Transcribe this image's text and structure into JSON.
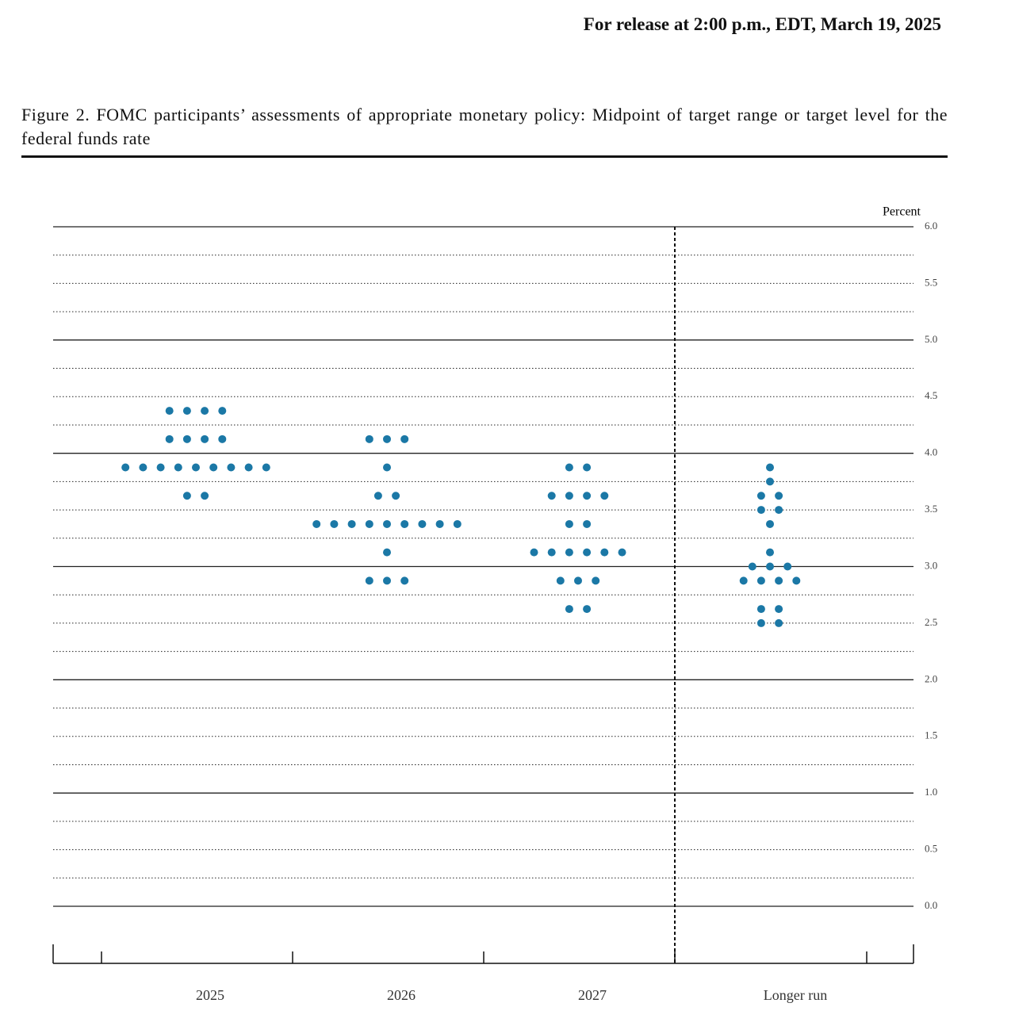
{
  "header": {
    "release": "For release at 2:00 p.m., EDT, March 19, 2025"
  },
  "chart_data": {
    "type": "dotplot",
    "title": "Figure 2.  FOMC participants’ assessments of appropriate monetary policy:  Midpoint of target range or target level for the federal funds rate",
    "y_label": "Percent",
    "categories": [
      "2025",
      "2026",
      "2027",
      "Longer run"
    ],
    "color": "#1b78a6",
    "values": [
      [
        4.375,
        4.375,
        4.375,
        4.375,
        4.125,
        4.125,
        4.125,
        4.125,
        3.875,
        3.875,
        3.875,
        3.875,
        3.875,
        3.875,
        3.875,
        3.875,
        3.875,
        3.625,
        3.625
      ],
      [
        4.125,
        4.125,
        4.125,
        3.875,
        3.625,
        3.625,
        3.375,
        3.375,
        3.375,
        3.375,
        3.375,
        3.375,
        3.375,
        3.375,
        3.375,
        3.125,
        2.875,
        2.875,
        2.875
      ],
      [
        3.875,
        3.875,
        3.625,
        3.625,
        3.625,
        3.625,
        3.375,
        3.375,
        3.125,
        3.125,
        3.125,
        3.125,
        3.125,
        3.125,
        2.875,
        2.875,
        2.875,
        2.625,
        2.625
      ],
      [
        3.875,
        3.75,
        3.625,
        3.625,
        3.5,
        3.5,
        3.375,
        3.125,
        3.0,
        3.0,
        3.0,
        2.875,
        2.875,
        2.875,
        2.875,
        2.625,
        2.625,
        2.5,
        2.5
      ]
    ],
    "ylim": [
      0,
      6
    ],
    "yticks": [
      {
        "value": 0,
        "label": "0.0"
      },
      {
        "value": 0.5,
        "label": "0.5"
      },
      {
        "value": 1,
        "label": "1.0"
      },
      {
        "value": 1.5,
        "label": "1.5"
      },
      {
        "value": 2,
        "label": "2.0"
      },
      {
        "value": 2.5,
        "label": "2.5"
      },
      {
        "value": 3,
        "label": "3.0"
      },
      {
        "value": 3.5,
        "label": "3.5"
      },
      {
        "value": 4,
        "label": "4.0"
      },
      {
        "value": 4.5,
        "label": "4.5"
      },
      {
        "value": 5,
        "label": "5.0"
      },
      {
        "value": 5.5,
        "label": "5.5"
      },
      {
        "value": 6,
        "label": "6.0"
      }
    ],
    "minor_yticks": [
      0.25,
      0.75,
      1.25,
      1.75,
      2.25,
      2.75,
      3.25,
      3.75,
      4.25,
      4.75,
      5.25,
      5.75
    ],
    "grid": true
  }
}
